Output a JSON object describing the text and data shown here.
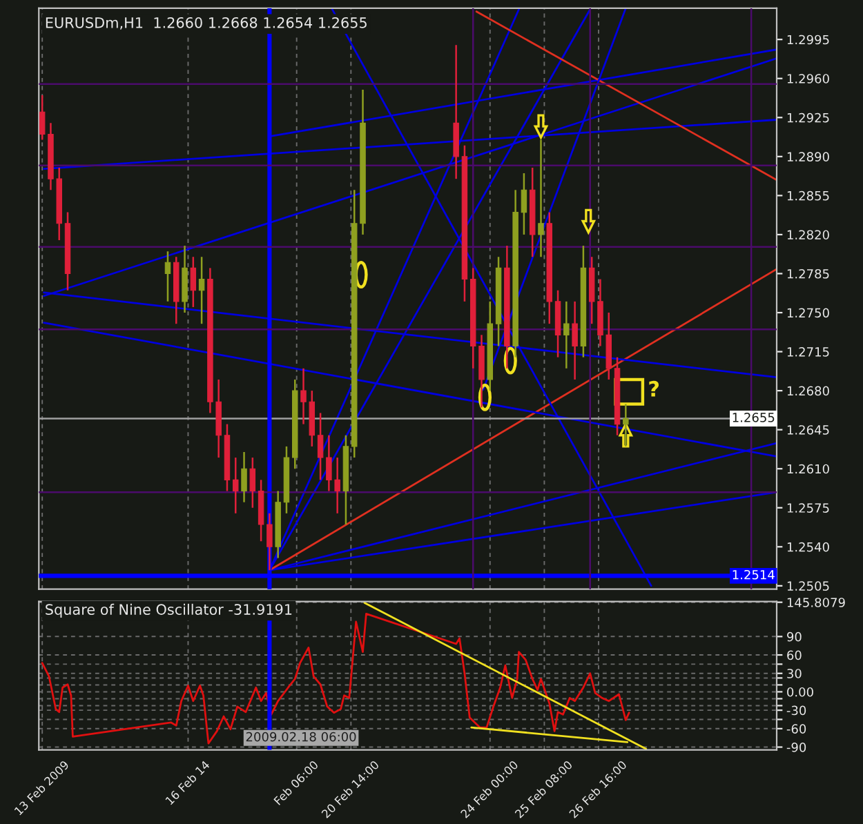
{
  "chart_data": [
    {
      "type": "candlestick",
      "title": "EURUSDm,H1  1.2660 1.2668 1.2654 1.2655",
      "x": [
        "2009-02-13T00:00",
        "2009-02-13T05:00",
        "2009-02-13T10:00",
        "2009-02-13T15:00",
        "2009-02-16T02:00",
        "2009-02-16T07:00",
        "2009-02-16T12:00",
        "2009-02-16T17:00",
        "2009-02-16T22:00",
        "2009-02-17T03:00",
        "2009-02-17T08:00",
        "2009-02-17T13:00",
        "2009-02-17T18:00",
        "2009-02-17T23:00",
        "2009-02-18T04:00",
        "2009-02-18T09:00",
        "2009-02-18T14:00",
        "2009-02-18T19:00",
        "2009-02-19T00:00",
        "2009-02-19T05:00",
        "2009-02-19T10:00",
        "2009-02-19T15:00",
        "2009-02-19T20:00",
        "2009-02-20T01:00",
        "2009-02-20T06:00",
        "2009-02-20T11:00",
        "2009-02-20T16:00",
        "2009-02-20T21:00",
        "2009-02-23T04:00",
        "2009-02-23T09:00",
        "2009-02-23T14:00",
        "2009-02-23T19:00",
        "2009-02-24T00:00",
        "2009-02-24T05:00",
        "2009-02-24T10:00",
        "2009-02-24T15:00",
        "2009-02-24T20:00",
        "2009-02-25T01:00",
        "2009-02-25T06:00",
        "2009-02-25T11:00",
        "2009-02-25T16:00",
        "2009-02-25T21:00",
        "2009-02-26T02:00",
        "2009-02-26T07:00",
        "2009-02-26T12:00",
        "2009-02-26T17:00",
        "2009-02-26T22:00",
        "2009-02-27T03:00",
        "2009-02-27T08:00"
      ],
      "ohlc": [
        [
          1.293,
          1.2945,
          1.2905,
          1.291
        ],
        [
          1.291,
          1.292,
          1.286,
          1.287
        ],
        [
          1.287,
          1.288,
          1.2815,
          1.283
        ],
        [
          1.283,
          1.284,
          1.277,
          1.2785
        ],
        [
          1.2785,
          1.2805,
          1.276,
          1.2795
        ],
        [
          1.2795,
          1.28,
          1.274,
          1.276
        ],
        [
          1.276,
          1.281,
          1.275,
          1.279
        ],
        [
          1.279,
          1.28,
          1.2755,
          1.277
        ],
        [
          1.277,
          1.28,
          1.274,
          1.278
        ],
        [
          1.278,
          1.279,
          1.266,
          1.267
        ],
        [
          1.267,
          1.269,
          1.262,
          1.264
        ],
        [
          1.264,
          1.265,
          1.259,
          1.26
        ],
        [
          1.26,
          1.262,
          1.257,
          1.259
        ],
        [
          1.259,
          1.2625,
          1.258,
          1.261
        ],
        [
          1.261,
          1.262,
          1.2575,
          1.259
        ],
        [
          1.259,
          1.26,
          1.2545,
          1.256
        ],
        [
          1.256,
          1.257,
          1.2519,
          1.254
        ],
        [
          1.254,
          1.259,
          1.253,
          1.258
        ],
        [
          1.258,
          1.263,
          1.257,
          1.262
        ],
        [
          1.262,
          1.269,
          1.261,
          1.268
        ],
        [
          1.268,
          1.27,
          1.265,
          1.267
        ],
        [
          1.267,
          1.268,
          1.263,
          1.264
        ],
        [
          1.264,
          1.266,
          1.26,
          1.262
        ],
        [
          1.262,
          1.264,
          1.259,
          1.26
        ],
        [
          1.26,
          1.262,
          1.257,
          1.259
        ],
        [
          1.259,
          1.264,
          1.256,
          1.263
        ],
        [
          1.263,
          1.286,
          1.262,
          1.283
        ],
        [
          1.283,
          1.295,
          1.282,
          1.292
        ],
        [
          1.292,
          1.299,
          1.287,
          1.289
        ],
        [
          1.289,
          1.29,
          1.276,
          1.278
        ],
        [
          1.278,
          1.279,
          1.27,
          1.272
        ],
        [
          1.272,
          1.273,
          1.2665,
          1.269
        ],
        [
          1.269,
          1.276,
          1.268,
          1.274
        ],
        [
          1.274,
          1.28,
          1.272,
          1.279
        ],
        [
          1.279,
          1.281,
          1.27,
          1.272
        ],
        [
          1.272,
          1.286,
          1.271,
          1.284
        ],
        [
          1.284,
          1.2875,
          1.282,
          1.286
        ],
        [
          1.286,
          1.288,
          1.28,
          1.282
        ],
        [
          1.282,
          1.2905,
          1.28,
          1.283
        ],
        [
          1.283,
          1.284,
          1.274,
          1.276
        ],
        [
          1.276,
          1.277,
          1.271,
          1.273
        ],
        [
          1.273,
          1.276,
          1.27,
          1.274
        ],
        [
          1.274,
          1.276,
          1.269,
          1.272
        ],
        [
          1.272,
          1.281,
          1.271,
          1.279
        ],
        [
          1.279,
          1.28,
          1.274,
          1.276
        ],
        [
          1.276,
          1.278,
          1.272,
          1.273
        ],
        [
          1.273,
          1.275,
          1.269,
          1.27
        ],
        [
          1.27,
          1.271,
          1.264,
          1.265
        ],
        [
          1.265,
          1.2668,
          1.263,
          1.2655
        ]
      ],
      "series": [
        {
          "type": "line",
          "color": "#0000e0",
          "x": [
            "2009-02-18T14:00",
            "2009-03-03T01:00"
          ],
          "values": [
            1.2519,
            1.2589
          ]
        },
        {
          "type": "line",
          "color": "#0000e0",
          "x": [
            "2009-02-18T14:00",
            "2009-03-03T01:00"
          ],
          "values": [
            1.2519,
            1.2633
          ]
        },
        {
          "type": "line",
          "color": "#e03020",
          "x": [
            "2009-02-18T14:00",
            "2009-03-03T01:00"
          ],
          "values": [
            1.2519,
            1.2789
          ]
        },
        {
          "type": "line",
          "color": "#0000e0",
          "x": [
            "2009-02-18T14:00",
            "2009-02-26T11:00"
          ],
          "values": [
            1.2519,
            1.3022
          ]
        },
        {
          "type": "line",
          "color": "#0000e0",
          "x": [
            "2009-02-18T14:00",
            "2009-02-24T17:00"
          ],
          "values": [
            1.2519,
            1.3022
          ]
        },
        {
          "type": "line",
          "color": "#0000e0",
          "x": [
            "2009-02-13T01:00",
            "2009-03-03T01:00"
          ],
          "values": [
            1.2768,
            1.2692
          ]
        },
        {
          "type": "line",
          "color": "#0000e0",
          "x": [
            "2009-02-13T01:00",
            "2009-03-03T01:00"
          ],
          "values": [
            1.2741,
            1.2621
          ]
        },
        {
          "type": "line",
          "color": "#0000e0",
          "x": [
            "2009-02-13T01:00",
            "2009-03-03T01:00"
          ],
          "values": [
            1.2765,
            1.2978
          ]
        },
        {
          "type": "line",
          "color": "#0000e0",
          "x": [
            "2009-02-13T01:00",
            "2009-03-03T01:00"
          ],
          "values": [
            1.2879,
            1.2923
          ]
        },
        {
          "type": "line",
          "color": "#0000e0",
          "x": [
            "2009-02-18T14:00",
            "2009-03-03T01:00"
          ],
          "values": [
            1.2908,
            1.2986
          ]
        },
        {
          "type": "line",
          "color": "#e03020",
          "x": [
            "2009-02-23T16:00",
            "2009-03-03T01:00"
          ],
          "values": [
            1.302,
            1.2869
          ]
        },
        {
          "type": "line",
          "color": "#0000e0",
          "x": [
            "2009-02-20T03:00",
            "2009-02-27T23:00"
          ],
          "values": [
            1.3022,
            1.2505
          ]
        },
        {
          "type": "line",
          "color": "#0000e0",
          "x": [
            "2009-02-23T20:00",
            "2009-02-27T08:00"
          ],
          "values": [
            1.2681,
            1.3023
          ]
        }
      ],
      "ref_lines": [
        {
          "axis": "y",
          "value": 1.2655,
          "label": "1.2655",
          "color": "#a0a0a0"
        },
        {
          "axis": "y",
          "value": 1.2514,
          "label": "1.2514",
          "color": "#0000ff"
        },
        {
          "axis": "x",
          "value": "2009-02-18T14:00",
          "label": null,
          "color": "#0000ff"
        },
        {
          "axis": "x",
          "value": "2009-02-23T14:00",
          "label": null,
          "color": "#4b0b6b"
        },
        {
          "axis": "x",
          "value": "2009-02-26T11:00",
          "label": null,
          "color": "#4b0b6b"
        },
        {
          "axis": "x",
          "value": "2009-03-02T10:00",
          "label": null,
          "color": "#4b0b6b"
        },
        {
          "axis": "y",
          "value": 1.2955,
          "label": null,
          "color": "#4b0b6b"
        },
        {
          "axis": "y",
          "value": 1.2882,
          "label": null,
          "color": "#4b0b6b"
        },
        {
          "axis": "y",
          "value": 1.2809,
          "label": null,
          "color": "#4b0b6b"
        },
        {
          "axis": "y",
          "value": 1.2735,
          "label": null,
          "color": "#4b0b6b"
        },
        {
          "axis": "y",
          "value": 1.2589,
          "label": null,
          "color": "#4b0b6b"
        }
      ],
      "annotations": [
        "?"
      ],
      "xlim": [
        "2009-02-12T22:00",
        "2009-03-03T01:00"
      ],
      "ylim": [
        1.2502,
        1.3023
      ],
      "xticks": [
        "2009-02-13T00:00",
        "2009-02-16T14:00",
        "2009-02-19T06:00",
        "2009-02-20T14:00",
        "2009-02-24T00:00",
        "2009-02-25T08:00",
        "2009-02-26T16:00"
      ],
      "yticks": [
        1.2995,
        {
          "value": 1.296,
          "label": "1.2960"
        },
        1.2925,
        {
          "value": 1.289,
          "label": "1.2890"
        },
        1.2855,
        {
          "value": 1.282,
          "label": "1.2820"
        },
        1.2785,
        {
          "value": 1.275,
          "label": "1.2750"
        },
        1.2715,
        {
          "value": 1.268,
          "label": "1.2680"
        },
        1.2645,
        {
          "value": 1.261,
          "label": "1.2610"
        },
        1.2575,
        {
          "value": 1.254,
          "label": "1.2540"
        },
        1.2505
      ],
      "tick_labels": "y",
      "grid": "x"
    },
    {
      "type": "line",
      "title": "Square of Nine Oscillator -31.9191",
      "series": [
        {
          "type": "line",
          "color": "#e01010",
          "x": [
            "2009-02-13T00:00",
            "2009-02-13T04:00",
            "2009-02-13T08:00",
            "2009-02-13T10:00",
            "2009-02-13T12:00",
            "2009-02-13T15:00",
            "2009-02-13T17:00",
            "2009-02-13T18:00",
            "2009-02-16T04:00",
            "2009-02-16T07:00",
            "2009-02-16T10:00",
            "2009-02-16T14:00",
            "2009-02-16T17:00",
            "2009-02-16T21:00",
            "2009-02-16T23:00",
            "2009-02-17T02:00",
            "2009-02-17T07:00",
            "2009-02-17T11:00",
            "2009-02-17T15:00",
            "2009-02-17T19:00",
            "2009-02-18T00:00",
            "2009-02-18T06:00",
            "2009-02-18T09:00",
            "2009-02-18T12:00",
            "2009-02-18T15:00",
            "2009-02-18T19:00",
            "2009-02-19T01:00",
            "2009-02-19T05:00",
            "2009-02-19T08:00",
            "2009-02-19T13:00",
            "2009-02-19T16:00",
            "2009-02-19T20:00",
            "2009-02-20T00:00",
            "2009-02-20T04:00",
            "2009-02-20T08:00",
            "2009-02-20T10:00",
            "2009-02-20T13:00",
            "2009-02-20T17:00",
            "2009-02-20T21:00",
            "2009-02-20T23:00",
            "2009-02-23T04:00",
            "2009-02-23T06:00",
            "2009-02-23T09:00",
            "2009-02-23T12:00",
            "2009-02-23T18:00",
            "2009-02-23T22:00",
            "2009-02-24T02:00",
            "2009-02-24T06:00",
            "2009-02-24T09:00",
            "2009-02-24T13:00",
            "2009-02-24T16:00",
            "2009-02-24T17:00",
            "2009-02-24T21:00",
            "2009-02-25T01:00",
            "2009-02-25T04:00",
            "2009-02-25T06:00",
            "2009-02-25T11:00",
            "2009-02-25T14:00",
            "2009-02-25T16:00",
            "2009-02-25T19:00",
            "2009-02-25T23:00",
            "2009-02-26T02:00",
            "2009-02-26T07:00",
            "2009-02-26T11:00",
            "2009-02-26T14:00",
            "2009-02-26T18:00",
            "2009-02-26T22:00",
            "2009-02-27T04:00",
            "2009-02-27T08:00",
            "2009-02-27T10:00"
          ],
          "values": [
            47,
            25,
            -28,
            -33,
            7,
            12,
            -6,
            -73,
            -50,
            -55,
            -15,
            10,
            -15,
            10,
            -6,
            -84,
            -64,
            -40,
            -61,
            -24,
            -33,
            7,
            -15,
            -2,
            -37,
            -15,
            7,
            21,
            47,
            72,
            25,
            12,
            -24,
            -34,
            -28,
            -6,
            -10,
            114,
            65,
            127,
            78,
            87,
            30,
            -42,
            -58,
            -58,
            -24,
            7,
            43,
            -10,
            21,
            65,
            52,
            21,
            3,
            21,
            -19,
            -64,
            -33,
            -37,
            -10,
            -15,
            7,
            30,
            -2,
            -10,
            -15,
            -4,
            -46,
            -34
          ]
        },
        {
          "type": "line",
          "color": "#f0e020",
          "x": [
            "2009-02-20T22:00",
            "2009-02-27T20:00"
          ],
          "values": [
            145,
            -93
          ]
        },
        {
          "type": "line",
          "color": "#f0e020",
          "x": [
            "2009-02-23T13:00",
            "2009-02-27T09:00"
          ],
          "values": [
            -58,
            -82
          ]
        }
      ],
      "ref_lines": [
        {
          "axis": "x",
          "value": "2009-02-18T14:00",
          "label": null,
          "color": "#0000ff"
        }
      ],
      "annotations": [
        "2009.02.18 06:00"
      ],
      "xlim": [
        "2009-02-12T22:00",
        "2009-03-03T01:00"
      ],
      "ylim": [
        -94.5,
        147
      ],
      "xticks": [
        {
          "value": "2009-02-13T00:00",
          "label": "13 Feb 2009"
        },
        {
          "value": "2009-02-16T14:00",
          "label": "16 Feb 14"
        },
        {
          "value": "2009-02-19T06:00",
          "label": "Feb 06:00"
        },
        {
          "value": "2009-02-20T14:00",
          "label": "20 Feb 14:00"
        },
        {
          "value": "2009-02-24T00:00",
          "label": "24 Feb 00:00"
        },
        {
          "value": "2009-02-25T08:00",
          "label": "25 Feb 08:00"
        },
        {
          "value": "2009-02-26T16:00",
          "label": "26 Feb 16:00"
        }
      ],
      "yticks": [
        {
          "value": 145.8079,
          "label": "145.8079"
        },
        90,
        60,
        {
          "value": 45,
          "label": null
        },
        30,
        {
          "value": 22.5,
          "label": null
        },
        {
          "value": 11.25,
          "label": null
        },
        {
          "value": 0,
          "label": "0.00"
        },
        {
          "value": -11.25,
          "label": null
        },
        {
          "value": -22.5,
          "label": null
        },
        -30,
        {
          "value": -45,
          "label": null
        },
        -60,
        -90
      ],
      "grid": true
    }
  ]
}
